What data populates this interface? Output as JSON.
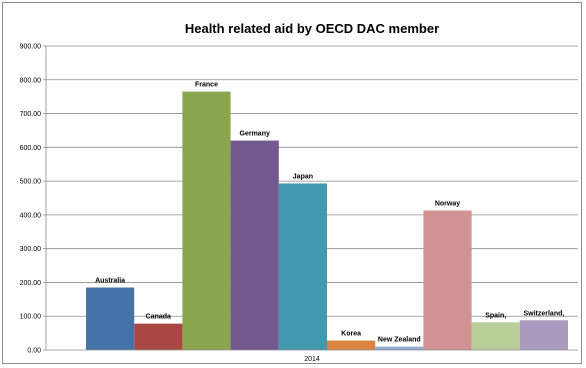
{
  "chart_data": {
    "type": "bar",
    "title": "Health related aid by OECD DAC member",
    "categories": [
      "2014"
    ],
    "ylim": [
      0,
      900
    ],
    "y_ticks": [
      "0.00",
      "100.00",
      "200.00",
      "300.00",
      "400.00",
      "500.00",
      "600.00",
      "700.00",
      "800.00",
      "900.00"
    ],
    "grid": true,
    "series": [
      {
        "name": "Australia",
        "values": [
          185
        ],
        "color": "#4572a7"
      },
      {
        "name": "Canada",
        "values": [
          78
        ],
        "color": "#aa4643"
      },
      {
        "name": "France",
        "values": [
          765
        ],
        "color": "#89a54e"
      },
      {
        "name": "Germany",
        "values": [
          620
        ],
        "color": "#71588f"
      },
      {
        "name": "Japan",
        "values": [
          493
        ],
        "color": "#4198af"
      },
      {
        "name": "Korea",
        "values": [
          28
        ],
        "color": "#db843d"
      },
      {
        "name": "New Zealand",
        "values": [
          10
        ],
        "color": "#93a9cf"
      },
      {
        "name": "Norway",
        "values": [
          413
        ],
        "color": "#d19392"
      },
      {
        "name": "Spain,",
        "values": [
          82
        ],
        "color": "#b9cd96"
      },
      {
        "name": "Switzerland,",
        "values": [
          88
        ],
        "color": "#a99bbd"
      }
    ]
  }
}
